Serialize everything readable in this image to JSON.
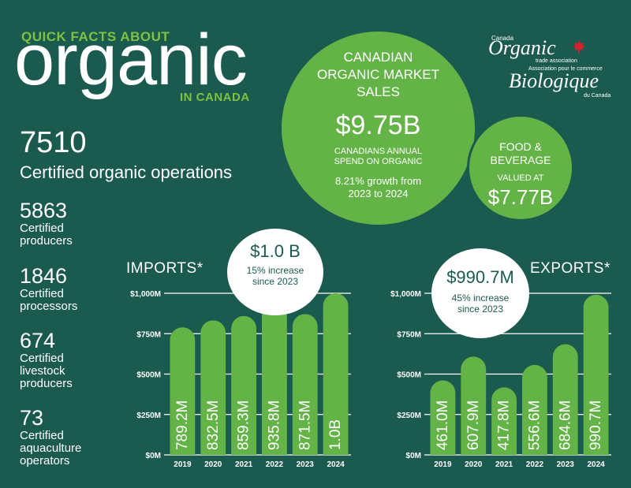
{
  "header": {
    "kicker": "QUICK FACTS ABOUT",
    "title": "organic",
    "subtitle": "IN CANADA"
  },
  "logo": {
    "small_top": "Canada",
    "word1": "Organic",
    "small_mid1": "trade association",
    "small_mid2": "Association pour le commerce",
    "word2": "Biologique",
    "small_bottom": "du Canada"
  },
  "stats": {
    "main": {
      "value": "7510",
      "label": "Certified organic operations"
    },
    "items": [
      {
        "value": "5863",
        "label": [
          "Certified",
          "producers"
        ]
      },
      {
        "value": "1846",
        "label": [
          "Certified",
          "processors"
        ]
      },
      {
        "value": "674",
        "label": [
          "Certified",
          "livestock",
          "producers"
        ]
      },
      {
        "value": "73",
        "label": [
          "Certified",
          "aquaculture",
          "operators"
        ]
      }
    ]
  },
  "market_circle": {
    "title": [
      "CANADIAN",
      "ORGANIC MARKET",
      "SALES"
    ],
    "value": "$9.75B",
    "desc": [
      "CANADIANS ANNUAL",
      "SPEND ON ORGANIC"
    ],
    "growth": [
      "8.21% growth from",
      "2023 to 2024"
    ]
  },
  "food_circle": {
    "title": [
      "FOOD &",
      "BEVERAGE"
    ],
    "desc": "VALUED AT",
    "value": "$7.77B"
  },
  "chart_data": [
    {
      "type": "bar",
      "title": "IMPORTS*",
      "categories": [
        "2019",
        "2020",
        "2021",
        "2022",
        "2023",
        "2024"
      ],
      "values": [
        789.2,
        832.5,
        859.3,
        935.8,
        871.5,
        1000
      ],
      "data_labels": [
        "789.2M",
        "832.5M",
        "859.3M",
        "935.8M",
        "871.5M",
        "1.0B"
      ],
      "yticks": [
        "$0M",
        "$250M",
        "$500M",
        "$750M",
        "$1,000M"
      ],
      "ylim": [
        0,
        1000
      ],
      "callout": {
        "value": "$1.0 B",
        "text": [
          "15% increase",
          "since 2023"
        ]
      },
      "bar_color": "#63b346"
    },
    {
      "type": "bar",
      "title": "EXPORTS*",
      "categories": [
        "2019",
        "2020",
        "2021",
        "2022",
        "2023",
        "2024"
      ],
      "values": [
        461.0,
        607.9,
        417.8,
        556.6,
        684.6,
        990.7
      ],
      "data_labels": [
        "461.0M",
        "607.9M",
        "417.8M",
        "556.6M",
        "684.6M",
        "990.7M"
      ],
      "yticks": [
        "$0M",
        "$250M",
        "$500M",
        "$750M",
        "$1,000M"
      ],
      "ylim": [
        0,
        1000
      ],
      "callout": {
        "value": "$990.7M",
        "text": [
          "45% increase",
          "since 2023"
        ]
      },
      "bar_color": "#63b346"
    }
  ]
}
